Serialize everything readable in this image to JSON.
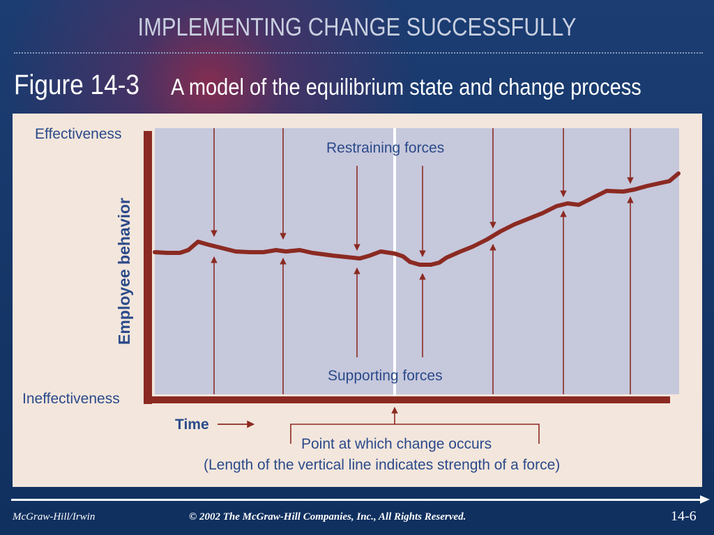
{
  "slide": {
    "title": "IMPLEMENTING CHANGE SUCCESSFULLY",
    "figure_label": "Figure 14-3",
    "figure_caption": "A model of the equilibrium state and change process"
  },
  "diagram": {
    "top_label": "Effectiveness",
    "bottom_label": "Ineffectiveness",
    "y_axis_label": "Employee behavior",
    "x_axis_label": "Time",
    "restraining_label": "Restraining forces",
    "supporting_label": "Supporting forces",
    "change_note_line1": "Point at which change occurs",
    "change_note_line2": "(Length of the vertical line indicates strength of a force)"
  },
  "footer": {
    "publisher": "McGraw-Hill/Irwin",
    "copyright": "© 2002 The McGraw-Hill Companies, Inc., All Rights Reserved.",
    "page_number": "14-6"
  },
  "colors": {
    "behavior_line": "#8b2a22",
    "plot_area": "#c6c8dc",
    "panel": "#f3e6dc",
    "label_text": "#2b4a8a"
  }
}
